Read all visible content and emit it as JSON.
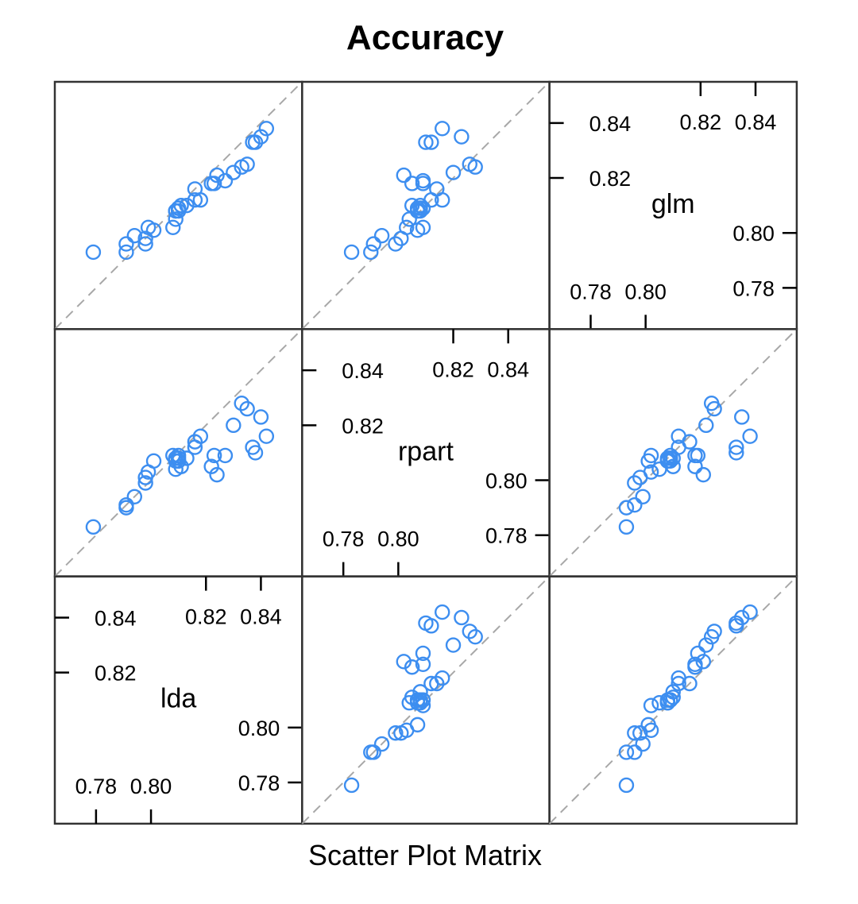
{
  "chart_data": {
    "type": "scatter",
    "title": "Accuracy",
    "xlabel": "Scatter Plot Matrix",
    "variables": [
      "lda",
      "rpart",
      "glm"
    ],
    "diagonal_order_bottom_to_top": [
      "lda",
      "rpart",
      "glm"
    ],
    "axis_range": [
      0.765,
      0.855
    ],
    "ticks": [
      0.78,
      0.8,
      0.82,
      0.84
    ],
    "tick_labels": [
      "0.78",
      "0.80",
      "0.82",
      "0.84"
    ],
    "reference_line": "y = x",
    "marker_color": "#3d8ef0",
    "points": [
      {
        "lda": 0.779,
        "rpart": 0.783,
        "glm": 0.793
      },
      {
        "lda": 0.791,
        "rpart": 0.79,
        "glm": 0.793
      },
      {
        "lda": 0.791,
        "rpart": 0.791,
        "glm": 0.796
      },
      {
        "lda": 0.794,
        "rpart": 0.794,
        "glm": 0.799
      },
      {
        "lda": 0.798,
        "rpart": 0.799,
        "glm": 0.796
      },
      {
        "lda": 0.798,
        "rpart": 0.801,
        "glm": 0.798
      },
      {
        "lda": 0.799,
        "rpart": 0.803,
        "glm": 0.802
      },
      {
        "lda": 0.801,
        "rpart": 0.807,
        "glm": 0.801
      },
      {
        "lda": 0.808,
        "rpart": 0.809,
        "glm": 0.802
      },
      {
        "lda": 0.809,
        "rpart": 0.804,
        "glm": 0.805
      },
      {
        "lda": 0.809,
        "rpart": 0.807,
        "glm": 0.808
      },
      {
        "lda": 0.809,
        "rpart": 0.808,
        "glm": 0.808
      },
      {
        "lda": 0.81,
        "rpart": 0.808,
        "glm": 0.809
      },
      {
        "lda": 0.81,
        "rpart": 0.809,
        "glm": 0.809
      },
      {
        "lda": 0.81,
        "rpart": 0.807,
        "glm": 0.809
      },
      {
        "lda": 0.81,
        "rpart": 0.807,
        "glm": 0.808
      },
      {
        "lda": 0.811,
        "rpart": 0.805,
        "glm": 0.81
      },
      {
        "lda": 0.813,
        "rpart": 0.808,
        "glm": 0.81
      },
      {
        "lda": 0.816,
        "rpart": 0.814,
        "glm": 0.816
      },
      {
        "lda": 0.816,
        "rpart": 0.812,
        "glm": 0.812
      },
      {
        "lda": 0.818,
        "rpart": 0.816,
        "glm": 0.812
      },
      {
        "lda": 0.822,
        "rpart": 0.805,
        "glm": 0.818
      },
      {
        "lda": 0.823,
        "rpart": 0.809,
        "glm": 0.818
      },
      {
        "lda": 0.824,
        "rpart": 0.802,
        "glm": 0.821
      },
      {
        "lda": 0.827,
        "rpart": 0.809,
        "glm": 0.819
      },
      {
        "lda": 0.83,
        "rpart": 0.82,
        "glm": 0.822
      },
      {
        "lda": 0.833,
        "rpart": 0.828,
        "glm": 0.824
      },
      {
        "lda": 0.835,
        "rpart": 0.826,
        "glm": 0.825
      },
      {
        "lda": 0.837,
        "rpart": 0.812,
        "glm": 0.833
      },
      {
        "lda": 0.838,
        "rpart": 0.81,
        "glm": 0.833
      },
      {
        "lda": 0.84,
        "rpart": 0.823,
        "glm": 0.835
      },
      {
        "lda": 0.842,
        "rpart": 0.816,
        "glm": 0.838
      }
    ]
  }
}
